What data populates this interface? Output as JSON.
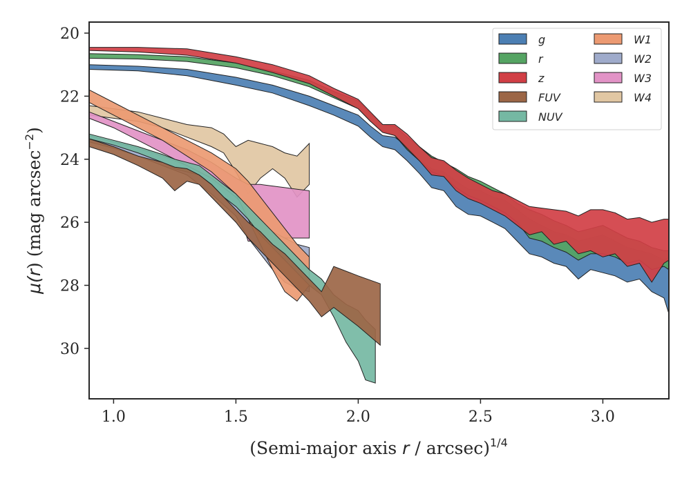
{
  "chart_data": {
    "type": "area",
    "xlabel_parts": [
      "(Semi-major axis ",
      "r",
      " / arcsec)",
      "1/4"
    ],
    "ylabel_parts": [
      "μ(",
      "r",
      ") (mag arcsec",
      "−2",
      ")"
    ],
    "xlim": [
      0.9,
      3.27
    ],
    "ylim": [
      31.6,
      19.65
    ],
    "y_inverted": true,
    "x_ticks": [
      1.0,
      1.5,
      2.0,
      2.5,
      3.0
    ],
    "x_tick_labels": [
      "1.0",
      "1.5",
      "2.0",
      "2.5",
      "3.0"
    ],
    "y_ticks": [
      20,
      22,
      24,
      26,
      28,
      30
    ],
    "y_tick_labels": [
      "20",
      "22",
      "24",
      "26",
      "28",
      "30"
    ],
    "grid": false,
    "legend_position": "top-right",
    "legend_columns": 2,
    "series": [
      {
        "name": "g",
        "color": "#4c7fb3",
        "x": [
          0.9,
          1.1,
          1.3,
          1.5,
          1.65,
          1.8,
          1.9,
          2.0,
          2.05,
          2.1,
          2.15,
          2.2,
          2.25,
          2.3,
          2.35,
          2.4,
          2.45,
          2.5,
          2.55,
          2.6,
          2.65,
          2.7,
          2.75,
          2.8,
          2.85,
          2.9,
          2.95,
          3.0,
          3.05,
          3.1,
          3.15,
          3.2,
          3.25,
          3.27
        ],
        "y_bright": [
          21.0,
          21.05,
          21.15,
          21.4,
          21.65,
          22.0,
          22.3,
          22.6,
          22.95,
          23.25,
          23.3,
          23.6,
          24.0,
          24.3,
          24.4,
          24.7,
          24.95,
          25.0,
          25.2,
          25.3,
          25.6,
          25.9,
          26.1,
          26.3,
          26.4,
          26.6,
          26.5,
          26.4,
          26.6,
          26.8,
          26.9,
          27.0,
          27.2,
          27.1
        ],
        "y_faint": [
          21.15,
          21.2,
          21.35,
          21.65,
          21.9,
          22.3,
          22.6,
          22.95,
          23.3,
          23.6,
          23.7,
          24.05,
          24.45,
          24.9,
          25.0,
          25.5,
          25.75,
          25.8,
          26.0,
          26.2,
          26.6,
          27.0,
          27.1,
          27.3,
          27.4,
          27.8,
          27.5,
          27.6,
          27.7,
          27.9,
          27.8,
          28.2,
          28.4,
          28.9
        ]
      },
      {
        "name": "r",
        "color": "#55a463",
        "x": [
          0.9,
          1.1,
          1.3,
          1.5,
          1.65,
          1.8,
          1.9,
          2.0,
          2.05,
          2.1,
          2.15,
          2.2,
          2.25,
          2.3,
          2.35,
          2.4,
          2.45,
          2.5,
          2.55,
          2.6,
          2.65,
          2.7,
          2.75,
          2.8,
          2.85,
          2.9,
          2.95,
          3.0,
          3.05,
          3.1,
          3.15,
          3.2,
          3.25,
          3.27
        ],
        "y_bright": [
          20.65,
          20.68,
          20.75,
          20.95,
          21.2,
          21.5,
          21.85,
          22.15,
          22.55,
          22.9,
          22.95,
          23.3,
          23.6,
          23.9,
          24.1,
          24.3,
          24.55,
          24.7,
          24.9,
          25.1,
          25.4,
          25.6,
          25.75,
          25.95,
          26.1,
          26.3,
          26.2,
          26.1,
          26.3,
          26.5,
          26.6,
          26.8,
          26.9,
          26.9
        ],
        "y_faint": [
          20.8,
          20.82,
          20.9,
          21.1,
          21.35,
          21.7,
          22.05,
          22.4,
          22.8,
          23.1,
          23.25,
          23.7,
          24.05,
          24.4,
          24.55,
          24.9,
          25.15,
          25.3,
          25.5,
          25.7,
          26.0,
          26.5,
          26.6,
          26.8,
          26.95,
          27.2,
          27.0,
          27.0,
          27.1,
          27.3,
          27.2,
          27.5,
          27.4,
          27.5
        ]
      },
      {
        "name": "z",
        "color": "#d13f45",
        "x": [
          0.9,
          1.1,
          1.3,
          1.5,
          1.65,
          1.8,
          1.9,
          2.0,
          2.05,
          2.1,
          2.15,
          2.2,
          2.25,
          2.3,
          2.35,
          2.4,
          2.45,
          2.5,
          2.55,
          2.6,
          2.65,
          2.7,
          2.75,
          2.8,
          2.85,
          2.9,
          2.95,
          3.0,
          3.05,
          3.1,
          3.15,
          3.2,
          3.25,
          3.27
        ],
        "y_bright": [
          20.45,
          20.45,
          20.5,
          20.75,
          21.0,
          21.35,
          21.75,
          22.1,
          22.5,
          22.9,
          22.9,
          23.2,
          23.6,
          23.95,
          24.05,
          24.35,
          24.6,
          24.8,
          25.0,
          25.1,
          25.3,
          25.5,
          25.55,
          25.6,
          25.65,
          25.8,
          25.6,
          25.6,
          25.7,
          25.9,
          25.85,
          26.0,
          25.9,
          25.9
        ],
        "y_faint": [
          20.55,
          20.6,
          20.7,
          20.95,
          21.25,
          21.6,
          22.0,
          22.4,
          22.8,
          23.15,
          23.25,
          23.65,
          24.05,
          24.5,
          24.55,
          25.0,
          25.25,
          25.4,
          25.6,
          25.8,
          26.1,
          26.4,
          26.3,
          26.7,
          26.6,
          27.0,
          26.9,
          27.1,
          27.0,
          27.4,
          27.3,
          27.9,
          27.3,
          27.2
        ]
      },
      {
        "name": "FUV",
        "color": "#9c6646",
        "x": [
          0.9,
          1.0,
          1.1,
          1.2,
          1.25,
          1.3,
          1.35,
          1.4,
          1.45,
          1.5,
          1.55,
          1.6,
          1.65,
          1.7,
          1.75,
          1.8,
          1.85,
          1.9,
          2.0,
          2.09
        ],
        "y_bright": [
          23.35,
          23.6,
          23.9,
          24.1,
          24.25,
          24.3,
          24.5,
          24.8,
          25.2,
          25.6,
          26.0,
          26.3,
          26.7,
          27.0,
          27.4,
          27.8,
          28.2,
          27.4,
          27.7,
          27.95
        ],
        "y_faint": [
          23.6,
          23.85,
          24.2,
          24.6,
          25.0,
          24.7,
          24.8,
          25.2,
          25.6,
          26.0,
          26.5,
          26.9,
          27.3,
          27.7,
          28.1,
          28.5,
          29.0,
          28.7,
          29.3,
          29.9
        ]
      },
      {
        "name": "NUV",
        "color": "#75b8a3",
        "x": [
          0.9,
          1.0,
          1.1,
          1.2,
          1.25,
          1.3,
          1.35,
          1.4,
          1.45,
          1.5,
          1.55,
          1.6,
          1.65,
          1.7,
          1.75,
          1.8,
          1.85,
          1.9,
          1.95,
          2.0,
          2.03,
          2.07
        ],
        "y_bright": [
          23.2,
          23.4,
          23.6,
          23.85,
          24.0,
          24.1,
          24.2,
          24.5,
          24.8,
          25.1,
          25.5,
          25.9,
          26.3,
          26.7,
          27.1,
          27.5,
          27.8,
          28.3,
          28.6,
          28.8,
          29.1,
          29.4
        ],
        "y_faint": [
          23.35,
          23.55,
          23.8,
          24.1,
          24.3,
          24.4,
          24.5,
          24.8,
          25.2,
          25.5,
          25.9,
          26.4,
          26.8,
          27.2,
          27.6,
          28.0,
          28.3,
          29.0,
          29.8,
          30.4,
          31.0,
          31.1
        ]
      },
      {
        "name": "W1",
        "color": "#ec9a72",
        "x": [
          0.9,
          1.0,
          1.1,
          1.2,
          1.3,
          1.4,
          1.5,
          1.55,
          1.6,
          1.65,
          1.7,
          1.75,
          1.8
        ],
        "y_bright": [
          21.8,
          22.2,
          22.6,
          23.0,
          23.4,
          23.8,
          24.3,
          24.7,
          25.2,
          25.7,
          26.2,
          26.7,
          27.1
        ],
        "y_faint": [
          22.2,
          22.6,
          23.0,
          23.4,
          23.9,
          24.4,
          25.1,
          25.9,
          26.7,
          27.5,
          28.2,
          28.5,
          28.0
        ]
      },
      {
        "name": "W2",
        "color": "#9fabcb",
        "x": [
          0.9,
          1.0,
          1.1,
          1.2,
          1.3,
          1.4,
          1.5,
          1.55,
          1.6,
          1.65,
          1.7,
          1.75,
          1.8
        ],
        "y_bright": [
          23.25,
          23.45,
          23.65,
          23.9,
          24.2,
          24.6,
          25.2,
          25.6,
          26.0,
          26.3,
          26.5,
          26.7,
          26.8
        ],
        "y_faint": [
          23.45,
          23.65,
          23.9,
          24.2,
          24.5,
          25.1,
          25.8,
          26.5,
          27.0,
          27.5,
          27.9,
          28.1,
          28.2
        ]
      },
      {
        "name": "W3",
        "color": "#e293c6",
        "x": [
          0.9,
          1.0,
          1.1,
          1.2,
          1.3,
          1.4,
          1.5,
          1.55,
          1.6,
          1.65,
          1.7,
          1.75,
          1.8
        ],
        "y_bright": [
          22.5,
          22.8,
          23.1,
          23.4,
          23.7,
          24.1,
          24.6,
          24.8,
          24.8,
          24.85,
          24.9,
          24.95,
          25.0
        ],
        "y_faint": [
          22.7,
          23.0,
          23.4,
          23.8,
          24.2,
          24.7,
          25.4,
          26.6,
          26.6,
          26.5,
          26.5,
          26.5,
          26.5
        ]
      },
      {
        "name": "W4",
        "color": "#e1c7a3",
        "x": [
          0.9,
          1.0,
          1.1,
          1.2,
          1.3,
          1.4,
          1.45,
          1.5,
          1.55,
          1.6,
          1.65,
          1.7,
          1.75,
          1.8
        ],
        "y_bright": [
          22.3,
          22.4,
          22.5,
          22.7,
          22.9,
          23.0,
          23.2,
          23.6,
          23.4,
          23.5,
          23.6,
          23.8,
          23.9,
          23.5
        ],
        "y_faint": [
          22.6,
          22.7,
          22.8,
          23.0,
          23.3,
          23.6,
          23.8,
          24.4,
          25.1,
          24.6,
          24.3,
          24.6,
          25.2,
          24.8
        ]
      }
    ]
  }
}
